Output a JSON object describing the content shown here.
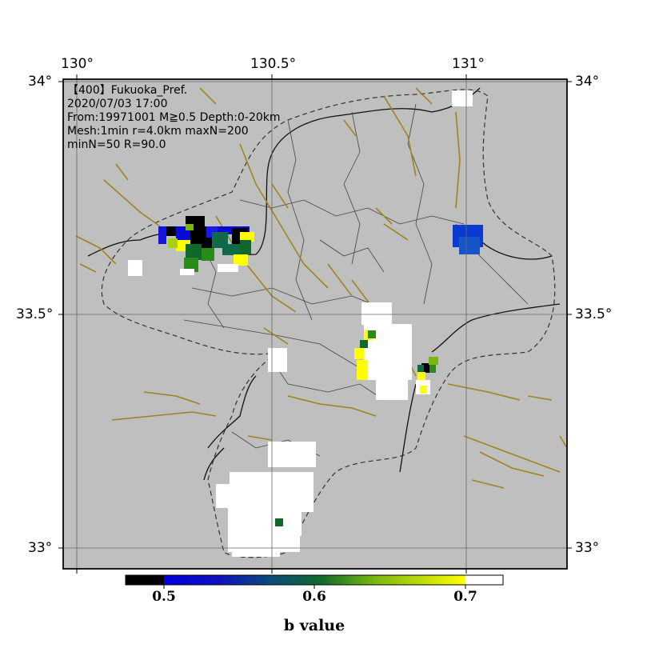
{
  "header": {
    "lines": [
      "【400】Fukuoka_Pref.",
      "2020/07/03 17:00",
      "From:19971001 M≧0.5 Depth:0-20km",
      "Mesh:1min r=4.0km maxN=200",
      "minN=50 R=90.0"
    ]
  },
  "axes": {
    "lon_ticks": [
      "130°",
      "130.5°",
      "131°"
    ],
    "lat_ticks": [
      "34°",
      "33.5°",
      "33°"
    ]
  },
  "colorbar": {
    "title": "b value",
    "tick_labels": [
      "0.5",
      "0.6",
      "0.7"
    ]
  },
  "colors": {
    "land": "#bfbfbf",
    "boundary": "#3a3a3a",
    "fault": "#a0841e",
    "no_data": "#ffffff",
    "colorbar_stops": [
      "#000000",
      "#0a0ad8",
      "#1f1fe6",
      "#0f6a4a",
      "#2a8a1a",
      "#a8cf12",
      "#ffff00",
      "#ffffff"
    ]
  }
}
